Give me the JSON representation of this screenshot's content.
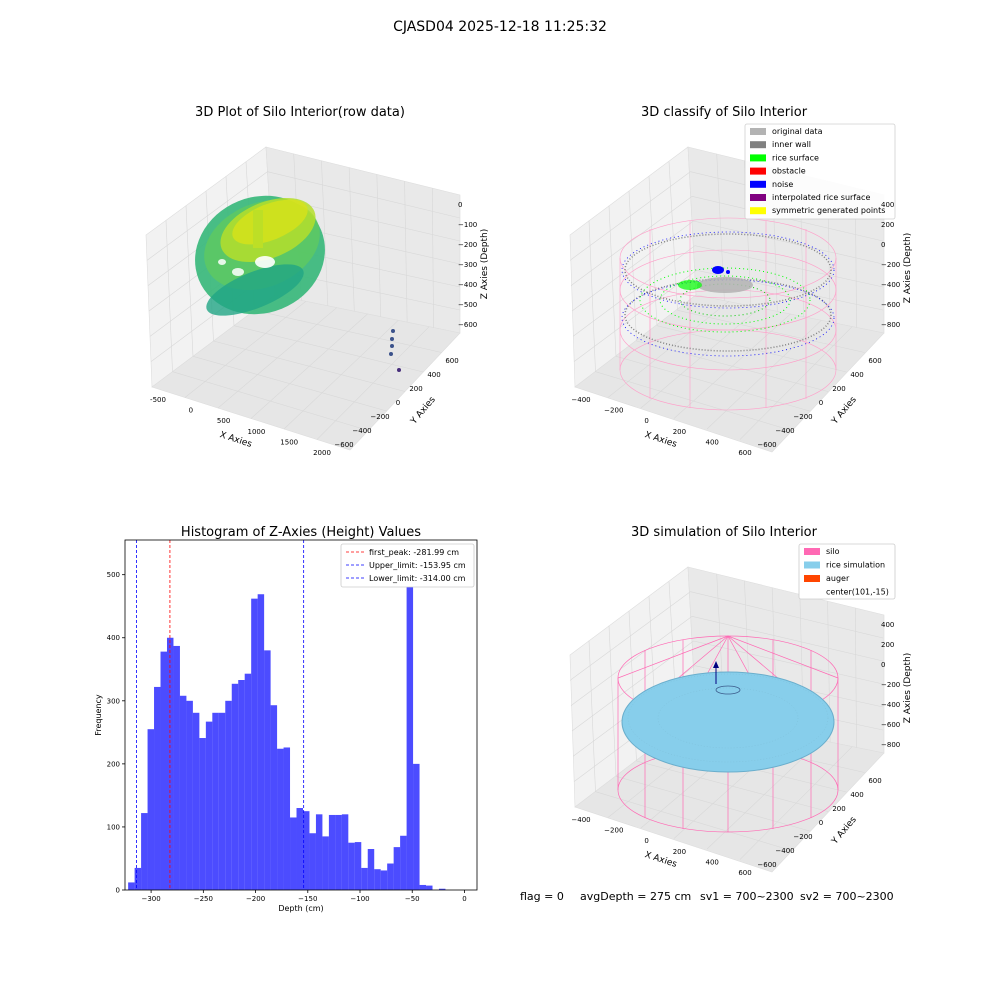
{
  "suptitle": "CJASD04 2025-12-18 11:25:32",
  "status_line": {
    "flag": "flag = 0",
    "avg": "avgDepth = 275 cm",
    "sv1": "sv1 = 700~2300",
    "sv2": "sv2 = 700~2300"
  },
  "panels": {
    "raw": {
      "title": "3D Plot of Silo Interior(row data)",
      "xlabel": "X Axies",
      "ylabel": "Y Axies",
      "zlabel": "Z Axies (Depth)",
      "xticks": [
        "-500",
        "0",
        "500",
        "1000",
        "1500",
        "2000"
      ],
      "yticks": [
        "600",
        "400",
        "200",
        "0",
        "−200",
        "−400",
        "−600"
      ],
      "zticks": [
        "0",
        "−100",
        "−200",
        "−300",
        "−400",
        "−500",
        "−600"
      ]
    },
    "classify": {
      "title": "3D classify of Silo Interior",
      "xlabel": "X Axies",
      "ylabel": "Y Axies",
      "zlabel": "Z Axies (Depth)",
      "xticks": [
        "−400",
        "−200",
        "0",
        "200",
        "400",
        "600"
      ],
      "yticks": [
        "600",
        "400",
        "200",
        "0",
        "−200",
        "−400",
        "−600"
      ],
      "zticks": [
        "400",
        "200",
        "0",
        "−200",
        "−400",
        "−600",
        "−800"
      ],
      "legend": [
        {
          "label": "original data",
          "color": "#b3b3b3"
        },
        {
          "label": "inner wall",
          "color": "#808080"
        },
        {
          "label": "rice surface",
          "color": "#00ff00"
        },
        {
          "label": "obstacle",
          "color": "#ff0000"
        },
        {
          "label": "noise",
          "color": "#0000ff"
        },
        {
          "label": "interpolated rice surface",
          "color": "#800080"
        },
        {
          "label": "symmetric generated points",
          "color": "#ffff00"
        }
      ]
    },
    "simulation": {
      "title": "3D simulation of Silo Interior",
      "xlabel": "X Axies",
      "ylabel": "Y Axies",
      "zlabel": "Z Axies (Depth)",
      "xticks": [
        "−400",
        "−200",
        "0",
        "200",
        "400",
        "600"
      ],
      "yticks": [
        "600",
        "400",
        "200",
        "0",
        "−200",
        "−400",
        "−600"
      ],
      "zticks": [
        "400",
        "200",
        "0",
        "−200",
        "−400",
        "−600",
        "−800"
      ],
      "legend": [
        {
          "label": "silo",
          "color": "#ff69b4"
        },
        {
          "label": "rice simulation",
          "color": "#87ceeb"
        },
        {
          "label": "auger",
          "color": "#ff4500"
        },
        {
          "label": "center(101,-15)",
          "color": ""
        }
      ]
    }
  },
  "chart_data": {
    "type": "bar",
    "title": "Histogram of Z-Axies (Height) Values",
    "xlabel": "Depth (cm)",
    "ylabel": "Frequency",
    "xlim": [
      -325,
      12
    ],
    "ylim": [
      0,
      555
    ],
    "xticks": [
      -300,
      -250,
      -200,
      -150,
      -100,
      -50,
      0
    ],
    "yticks": [
      0,
      100,
      200,
      300,
      400,
      500
    ],
    "bin_start": -322,
    "bin_width": 6.2,
    "values": [
      12,
      35,
      122,
      255,
      322,
      378,
      400,
      387,
      308,
      300,
      281,
      241,
      267,
      281,
      281,
      300,
      327,
      333,
      343,
      462,
      469,
      380,
      293,
      224,
      226,
      115,
      130,
      125,
      90,
      120,
      85,
      119,
      119,
      120,
      75,
      76,
      35,
      65,
      33,
      31,
      42,
      68,
      86,
      525,
      200,
      8,
      7,
      0,
      2
    ],
    "bar_color": "#0000ff",
    "lines": [
      {
        "label": "first_peak: -281.99 cm",
        "x": -281.99,
        "color": "#ff0000"
      },
      {
        "label": "Upper_limit: -153.95 cm",
        "x": -153.95,
        "color": "#0000ff"
      },
      {
        "label": "Lower_limit: -314.00 cm",
        "x": -314.0,
        "color": "#0000ff"
      }
    ],
    "legend_position": "upper right"
  }
}
